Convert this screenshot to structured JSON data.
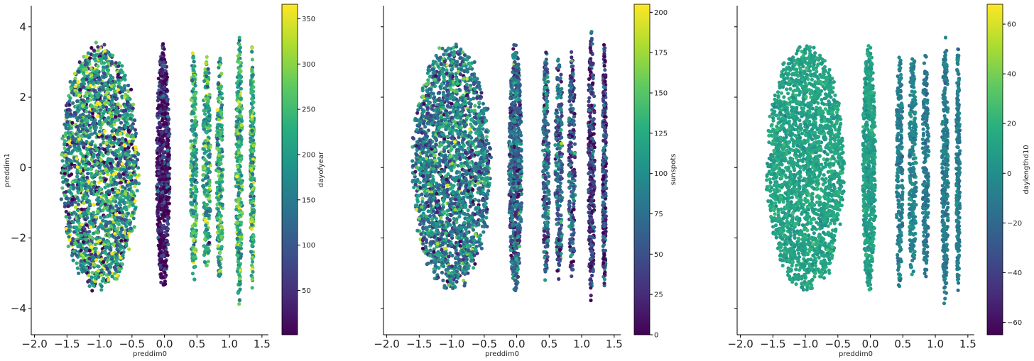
{
  "chart_data": [
    {
      "type": "scatter",
      "xlabel": "preddim0",
      "ylabel": "preddim1",
      "xlim": [
        -2.05,
        1.6
      ],
      "ylim": [
        -4.75,
        4.6
      ],
      "xticks": [
        -2.0,
        -1.5,
        -1.0,
        -0.5,
        0.0,
        0.5,
        1.0,
        1.5
      ],
      "xtick_labels": [
        "−2.0",
        "−1.5",
        "−1.0",
        "−0.5",
        "0.0",
        "0.5",
        "1.0",
        "1.5"
      ],
      "yticks": [
        4,
        2,
        0,
        -2,
        -4
      ],
      "ytick_labels": [
        "4",
        "2",
        "0",
        "−2",
        "−4"
      ],
      "show_yticklabels": true,
      "colorbar": {
        "label": "dayofyear",
        "colormap": "viridis",
        "range": [
          1,
          366
        ],
        "ticks": [
          50,
          100,
          150,
          200,
          250,
          300,
          350
        ],
        "tick_labels": [
          "50",
          "100",
          "150",
          "200",
          "250",
          "300",
          "350"
        ]
      },
      "clusters": [
        {
          "x_center": -1.0,
          "x_spread": 0.6,
          "y_spread": 3.5,
          "points": 2200,
          "color_mean": 180,
          "color_sd": 100
        },
        {
          "x_center": -0.02,
          "x_spread": 0.1,
          "y_spread": 3.5,
          "points": 700,
          "color_mean": 20,
          "color_sd": 60
        },
        {
          "x_center": 0.45,
          "x_spread": 0.05,
          "y_spread": 3.4,
          "points": 240,
          "color_mean": 220,
          "color_sd": 60
        },
        {
          "x_center": 0.65,
          "x_spread": 0.06,
          "y_spread": 3.3,
          "points": 240,
          "color_mean": 220,
          "color_sd": 60
        },
        {
          "x_center": 0.85,
          "x_spread": 0.05,
          "y_spread": 3.3,
          "points": 240,
          "color_mean": 220,
          "color_sd": 60
        },
        {
          "x_center": 1.15,
          "x_spread": 0.05,
          "y_spread": 3.8,
          "points": 300,
          "color_mean": 230,
          "color_sd": 60
        },
        {
          "x_center": 1.35,
          "x_spread": 0.03,
          "y_spread": 3.5,
          "points": 260,
          "color_mean": 230,
          "color_sd": 60
        }
      ]
    },
    {
      "type": "scatter",
      "xlabel": "preddim0",
      "ylabel": "",
      "xlim": [
        -2.05,
        1.6
      ],
      "ylim": [
        -4.75,
        4.6
      ],
      "xticks": [
        -2.0,
        -1.5,
        -1.0,
        -0.5,
        0.0,
        0.5,
        1.0,
        1.5
      ],
      "xtick_labels": [
        "−2.0",
        "−1.5",
        "−1.0",
        "−0.5",
        "0.0",
        "0.5",
        "1.0",
        "1.5"
      ],
      "yticks": [
        4,
        2,
        0,
        -2,
        -4
      ],
      "ytick_labels": [],
      "show_yticklabels": false,
      "colorbar": {
        "label": "sunspots",
        "colormap": "viridis",
        "range": [
          0,
          205
        ],
        "ticks": [
          0,
          25,
          50,
          75,
          100,
          125,
          150,
          175,
          200
        ],
        "tick_labels": [
          "0",
          "25",
          "50",
          "75",
          "100",
          "125",
          "150",
          "175",
          "200"
        ]
      },
      "clusters": [
        {
          "x_center": -1.0,
          "x_spread": 0.6,
          "y_spread": 3.5,
          "points": 2200,
          "color_mean": 85,
          "color_sd": 40
        },
        {
          "x_center": -0.02,
          "x_spread": 0.1,
          "y_spread": 3.5,
          "points": 700,
          "color_mean": 70,
          "color_sd": 35
        },
        {
          "x_center": 0.45,
          "x_spread": 0.05,
          "y_spread": 3.4,
          "points": 240,
          "color_mean": 70,
          "color_sd": 35
        },
        {
          "x_center": 0.65,
          "x_spread": 0.06,
          "y_spread": 3.3,
          "points": 240,
          "color_mean": 70,
          "color_sd": 35
        },
        {
          "x_center": 0.85,
          "x_spread": 0.05,
          "y_spread": 3.3,
          "points": 240,
          "color_mean": 55,
          "color_sd": 35
        },
        {
          "x_center": 1.15,
          "x_spread": 0.05,
          "y_spread": 3.8,
          "points": 300,
          "color_mean": 30,
          "color_sd": 30
        },
        {
          "x_center": 1.35,
          "x_spread": 0.03,
          "y_spread": 3.5,
          "points": 260,
          "color_mean": 40,
          "color_sd": 35
        }
      ]
    },
    {
      "type": "scatter",
      "xlabel": "preddim0",
      "ylabel": "",
      "xlim": [
        -2.05,
        1.6
      ],
      "ylim": [
        -4.75,
        4.6
      ],
      "xticks": [
        -2.0,
        -1.5,
        -1.0,
        -0.5,
        0.0,
        0.5,
        1.0,
        1.5
      ],
      "xtick_labels": [
        "−2.0",
        "−1.5",
        "−1.0",
        "−0.5",
        "0.0",
        "0.5",
        "1.0",
        "1.5"
      ],
      "yticks": [
        4,
        2,
        0,
        -2,
        -4
      ],
      "ytick_labels": [],
      "show_yticklabels": false,
      "colorbar": {
        "label": "daylengthd10",
        "colormap": "viridis",
        "range": [
          -65,
          68
        ],
        "ticks": [
          60,
          40,
          20,
          0,
          -20,
          -40,
          -60
        ],
        "tick_labels": [
          "60",
          "40",
          "20",
          "0",
          "−20",
          "−40",
          "−60"
        ]
      },
      "clusters": [
        {
          "x_center": -1.0,
          "x_spread": 0.6,
          "y_spread": 3.5,
          "points": 2200,
          "color_mean": 12,
          "color_sd": 6
        },
        {
          "x_center": -0.02,
          "x_spread": 0.1,
          "y_spread": 3.5,
          "points": 700,
          "color_mean": 10,
          "color_sd": 6
        },
        {
          "x_center": 0.45,
          "x_spread": 0.05,
          "y_spread": 3.4,
          "points": 240,
          "color_mean": -8,
          "color_sd": 6
        },
        {
          "x_center": 0.65,
          "x_spread": 0.06,
          "y_spread": 3.3,
          "points": 240,
          "color_mean": -5,
          "color_sd": 6
        },
        {
          "x_center": 0.85,
          "x_spread": 0.05,
          "y_spread": 3.3,
          "points": 240,
          "color_mean": -12,
          "color_sd": 6
        },
        {
          "x_center": 1.15,
          "x_spread": 0.05,
          "y_spread": 3.8,
          "points": 300,
          "color_mean": -10,
          "color_sd": 6
        },
        {
          "x_center": 1.35,
          "x_spread": 0.03,
          "y_spread": 3.5,
          "points": 260,
          "color_mean": -8,
          "color_sd": 6
        }
      ]
    }
  ]
}
